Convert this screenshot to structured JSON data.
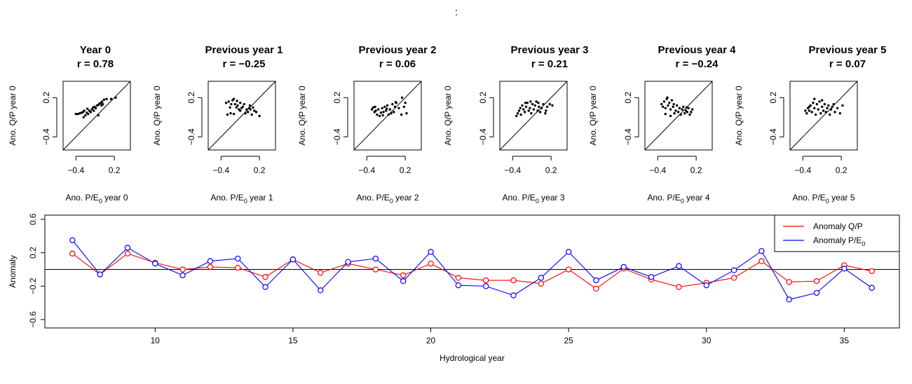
{
  "figure": {
    "top_title": ":",
    "line_color_qp": "#ff0000",
    "line_color_pe": "#0000ff"
  },
  "chart_data": [
    {
      "type": "scatter",
      "title": "Year 0",
      "r_label": "r = 0.78",
      "xlabel_main": "Ano. P/E",
      "xlabel_sub": "0",
      "xlabel_tail": " year 0",
      "ylabel": "Ano. Q/P year 0",
      "xlim": [
        -0.6,
        0.45
      ],
      "ylim": [
        -0.6,
        0.45
      ],
      "xticks": [
        -0.4,
        0.2
      ],
      "xtick_labels": [
        "−0.4",
        "0.2"
      ],
      "yticks": [
        -0.4,
        0.2
      ],
      "ytick_labels": [
        "−0.4",
        "0.2"
      ],
      "diagonal": true,
      "points": [
        [
          -0.4,
          -0.05
        ],
        [
          -0.37,
          -0.05
        ],
        [
          -0.34,
          -0.04
        ],
        [
          -0.31,
          -0.03
        ],
        [
          -0.29,
          -0.02
        ],
        [
          -0.27,
          0.0
        ],
        [
          -0.25,
          -0.07
        ],
        [
          -0.23,
          -0.03
        ],
        [
          -0.21,
          -0.05
        ],
        [
          -0.19,
          0.0
        ],
        [
          -0.17,
          -0.02
        ],
        [
          -0.15,
          0.02
        ],
        [
          -0.13,
          0.05
        ],
        [
          -0.11,
          0.06
        ],
        [
          -0.09,
          0.04
        ],
        [
          -0.07,
          0.08
        ],
        [
          -0.05,
          0.09
        ],
        [
          -0.03,
          0.11
        ],
        [
          -0.01,
          0.12
        ],
        [
          0.01,
          0.14
        ],
        [
          0.04,
          0.17
        ],
        [
          0.08,
          0.18
        ],
        [
          0.15,
          0.18
        ],
        [
          -0.28,
          -0.1
        ],
        [
          -0.22,
          0.03
        ],
        [
          -0.05,
          -0.07
        ],
        [
          -0.12,
          0.0
        ],
        [
          0.0,
          0.08
        ],
        [
          0.02,
          0.1
        ],
        [
          0.22,
          0.2
        ]
      ]
    },
    {
      "type": "scatter",
      "title": "Previous year 1",
      "r_label": "r = −0.25",
      "xlabel_main": "Ano. P/E",
      "xlabel_sub": "0",
      "xlabel_tail": " year 1",
      "ylabel": "Ano. Q/P year 0",
      "xlim": [
        -0.6,
        0.45
      ],
      "ylim": [
        -0.6,
        0.45
      ],
      "xticks": [
        -0.4,
        0.2
      ],
      "xtick_labels": [
        "−0.4",
        "0.2"
      ],
      "yticks": [
        -0.4,
        0.2
      ],
      "ytick_labels": [
        "−0.4",
        "0.2"
      ],
      "diagonal": true,
      "points": [
        [
          -0.32,
          0.12
        ],
        [
          -0.28,
          0.14
        ],
        [
          -0.26,
          0.05
        ],
        [
          -0.24,
          0.1
        ],
        [
          -0.22,
          0.16
        ],
        [
          -0.2,
          0.18
        ],
        [
          -0.18,
          0.1
        ],
        [
          -0.16,
          0.05
        ],
        [
          -0.14,
          0.08
        ],
        [
          -0.12,
          0.02
        ],
        [
          -0.1,
          0.0
        ],
        [
          -0.08,
          0.04
        ],
        [
          -0.06,
          0.06
        ],
        [
          -0.04,
          0.1
        ],
        [
          -0.02,
          -0.04
        ],
        [
          0.0,
          0.02
        ],
        [
          0.02,
          -0.02
        ],
        [
          0.04,
          0.04
        ],
        [
          0.06,
          0.02
        ],
        [
          0.08,
          -0.06
        ],
        [
          0.12,
          0.0
        ],
        [
          0.15,
          -0.02
        ],
        [
          0.2,
          -0.08
        ],
        [
          -0.3,
          -0.06
        ],
        [
          -0.25,
          -0.04
        ],
        [
          -0.2,
          -0.05
        ],
        [
          -0.1,
          0.12
        ],
        [
          0.05,
          0.08
        ],
        [
          -0.15,
          0.15
        ],
        [
          0.1,
          0.05
        ]
      ]
    },
    {
      "type": "scatter",
      "title": "Previous year 2",
      "r_label": "r = 0.06",
      "xlabel_main": "Ano. P/E",
      "xlabel_sub": "0",
      "xlabel_tail": " year 2",
      "ylabel": "Ano. Q/P year 0",
      "xlim": [
        -0.6,
        0.45
      ],
      "ylim": [
        -0.6,
        0.45
      ],
      "xticks": [
        -0.4,
        0.2
      ],
      "xtick_labels": [
        "−0.4",
        "0.2"
      ],
      "yticks": [
        -0.4,
        0.2
      ],
      "ytick_labels": [
        "−0.4",
        "0.2"
      ],
      "diagonal": true,
      "points": [
        [
          -0.32,
          0.02
        ],
        [
          -0.3,
          0.05
        ],
        [
          -0.28,
          -0.02
        ],
        [
          -0.26,
          0.0
        ],
        [
          -0.24,
          -0.06
        ],
        [
          -0.22,
          0.02
        ],
        [
          -0.2,
          -0.08
        ],
        [
          -0.18,
          -0.03
        ],
        [
          -0.16,
          0.04
        ],
        [
          -0.14,
          -0.02
        ],
        [
          -0.12,
          0.06
        ],
        [
          -0.1,
          0.0
        ],
        [
          -0.08,
          0.08
        ],
        [
          -0.06,
          -0.06
        ],
        [
          -0.04,
          0.02
        ],
        [
          -0.02,
          -0.04
        ],
        [
          0.0,
          0.1
        ],
        [
          0.02,
          -0.02
        ],
        [
          0.04,
          0.06
        ],
        [
          0.06,
          0.12
        ],
        [
          0.1,
          0.04
        ],
        [
          0.14,
          -0.06
        ],
        [
          0.18,
          0.06
        ],
        [
          0.22,
          -0.04
        ],
        [
          -0.27,
          0.06
        ],
        [
          -0.15,
          -0.07
        ],
        [
          0.05,
          0.13
        ],
        [
          -0.09,
          0.03
        ],
        [
          0.15,
          0.2
        ],
        [
          0.2,
          0.12
        ]
      ]
    },
    {
      "type": "scatter",
      "title": "Previous year 3",
      "r_label": "r = 0.21",
      "xlabel_main": "Ano. P/E",
      "xlabel_sub": "0",
      "xlabel_tail": " year 3",
      "ylabel": "Ano. Q/P year 0",
      "xlim": [
        -0.6,
        0.45
      ],
      "ylim": [
        -0.6,
        0.45
      ],
      "xticks": [
        -0.4,
        0.2
      ],
      "xtick_labels": [
        "−0.4",
        "0.2"
      ],
      "yticks": [
        -0.4,
        0.2
      ],
      "ytick_labels": [
        "−0.4",
        "0.2"
      ],
      "diagonal": true,
      "points": [
        [
          -0.34,
          -0.08
        ],
        [
          -0.32,
          -0.04
        ],
        [
          -0.3,
          0.0
        ],
        [
          -0.28,
          0.04
        ],
        [
          -0.27,
          -0.06
        ],
        [
          -0.25,
          0.08
        ],
        [
          -0.23,
          0.02
        ],
        [
          -0.21,
          -0.02
        ],
        [
          -0.19,
          0.06
        ],
        [
          -0.17,
          0.12
        ],
        [
          -0.15,
          0.0
        ],
        [
          -0.13,
          0.04
        ],
        [
          -0.11,
          -0.04
        ],
        [
          -0.09,
          0.1
        ],
        [
          -0.07,
          0.02
        ],
        [
          -0.05,
          0.08
        ],
        [
          -0.03,
          0.14
        ],
        [
          -0.01,
          0.0
        ],
        [
          0.01,
          0.06
        ],
        [
          0.03,
          -0.02
        ],
        [
          0.05,
          0.04
        ],
        [
          0.08,
          0.1
        ],
        [
          0.11,
          -0.04
        ],
        [
          0.14,
          0.06
        ],
        [
          0.18,
          0.1
        ],
        [
          0.22,
          0.08
        ],
        [
          -0.2,
          0.12
        ],
        [
          0.0,
          0.12
        ],
        [
          -0.12,
          0.14
        ],
        [
          0.12,
          0.0
        ]
      ]
    },
    {
      "type": "scatter",
      "title": "Previous year 4",
      "r_label": "r = −0.24",
      "xlabel_main": "Ano. P/E",
      "xlabel_sub": "0",
      "xlabel_tail": " year 4",
      "ylabel": "Ano. Q/P year 0",
      "xlim": [
        -0.6,
        0.45
      ],
      "ylim": [
        -0.6,
        0.45
      ],
      "xticks": [
        -0.4,
        0.2
      ],
      "xtick_labels": [
        "−0.4",
        "0.2"
      ],
      "yticks": [
        -0.4,
        0.2
      ],
      "ytick_labels": [
        "−0.4",
        "0.2"
      ],
      "diagonal": true,
      "points": [
        [
          -0.34,
          0.1
        ],
        [
          -0.32,
          0.06
        ],
        [
          -0.3,
          0.14
        ],
        [
          -0.28,
          0.04
        ],
        [
          -0.26,
          0.18
        ],
        [
          -0.24,
          0.08
        ],
        [
          -0.22,
          0.12
        ],
        [
          -0.2,
          0.02
        ],
        [
          -0.18,
          0.16
        ],
        [
          -0.16,
          0.06
        ],
        [
          -0.14,
          -0.04
        ],
        [
          -0.12,
          0.0
        ],
        [
          -0.1,
          0.08
        ],
        [
          -0.08,
          -0.02
        ],
        [
          -0.06,
          0.04
        ],
        [
          -0.04,
          -0.06
        ],
        [
          -0.02,
          0.02
        ],
        [
          0.0,
          0.06
        ],
        [
          0.02,
          -0.04
        ],
        [
          0.04,
          0.0
        ],
        [
          0.06,
          -0.02
        ],
        [
          0.08,
          0.04
        ],
        [
          0.1,
          -0.06
        ],
        [
          0.14,
          0.02
        ],
        [
          -0.25,
          0.2
        ],
        [
          -0.2,
          -0.08
        ],
        [
          -0.15,
          0.1
        ],
        [
          0.05,
          0.05
        ],
        [
          -0.28,
          -0.05
        ],
        [
          0.12,
          -0.02
        ]
      ]
    },
    {
      "type": "scatter",
      "title": "Previous year 5",
      "r_label": "r = 0.07",
      "xlabel_main": "Ano. P/E",
      "xlabel_sub": "0",
      "xlabel_tail": " year 5",
      "ylabel": "Ano. Q/P year 0",
      "xlim": [
        -0.6,
        0.45
      ],
      "ylim": [
        -0.6,
        0.45
      ],
      "xticks": [
        -0.4,
        0.2
      ],
      "xtick_labels": [
        "−0.4",
        "0.2"
      ],
      "yticks": [
        -0.4,
        0.2
      ],
      "ytick_labels": [
        "−0.4",
        "0.2"
      ],
      "diagonal": true,
      "points": [
        [
          -0.36,
          0.0
        ],
        [
          -0.34,
          -0.04
        ],
        [
          -0.32,
          0.04
        ],
        [
          -0.3,
          0.0
        ],
        [
          -0.28,
          0.08
        ],
        [
          -0.26,
          -0.02
        ],
        [
          -0.24,
          0.12
        ],
        [
          -0.22,
          0.04
        ],
        [
          -0.2,
          -0.06
        ],
        [
          -0.18,
          0.1
        ],
        [
          -0.16,
          0.02
        ],
        [
          -0.14,
          0.14
        ],
        [
          -0.12,
          -0.04
        ],
        [
          -0.1,
          0.06
        ],
        [
          -0.08,
          0.0
        ],
        [
          -0.06,
          0.1
        ],
        [
          -0.04,
          -0.02
        ],
        [
          -0.02,
          0.04
        ],
        [
          0.0,
          0.08
        ],
        [
          0.02,
          -0.06
        ],
        [
          0.04,
          0.02
        ],
        [
          0.06,
          0.06
        ],
        [
          0.1,
          -0.02
        ],
        [
          0.14,
          0.04
        ],
        [
          0.18,
          -0.04
        ],
        [
          0.22,
          0.08
        ],
        [
          -0.22,
          0.18
        ],
        [
          -0.1,
          0.16
        ],
        [
          0.08,
          0.1
        ],
        [
          -0.3,
          0.06
        ]
      ]
    },
    {
      "type": "line",
      "xlabel": "Hydrological year",
      "ylabel": "Anomaly",
      "xlim": [
        6,
        37
      ],
      "ylim": [
        -0.7,
        0.65
      ],
      "xticks": [
        10,
        15,
        20,
        25,
        30,
        35
      ],
      "yticks": [
        -0.6,
        -0.2,
        0.2,
        0.6
      ],
      "ytick_labels": [
        "−0.6",
        "−0.2",
        "0.2",
        "0.6"
      ],
      "hline": 0,
      "x": [
        7,
        8,
        9,
        10,
        11,
        12,
        13,
        14,
        15,
        16,
        17,
        18,
        19,
        20,
        21,
        22,
        23,
        24,
        25,
        26,
        27,
        28,
        29,
        30,
        31,
        32,
        33,
        34,
        35,
        36
      ],
      "series": [
        {
          "name": "Anomaly Q/P",
          "color": "#ff0000",
          "values": [
            0.19,
            -0.06,
            0.19,
            0.08,
            0.0,
            0.03,
            0.02,
            -0.09,
            0.12,
            -0.04,
            0.07,
            0.0,
            -0.07,
            0.07,
            -0.1,
            -0.13,
            -0.13,
            -0.17,
            0.0,
            -0.23,
            0.01,
            -0.12,
            -0.21,
            -0.16,
            -0.1,
            0.1,
            -0.15,
            -0.14,
            0.05,
            -0.02
          ]
        },
        {
          "name": "Anomaly P/E",
          "name_sub": "0",
          "color": "#0000ff",
          "values": [
            0.35,
            -0.06,
            0.26,
            0.07,
            -0.07,
            0.1,
            0.13,
            -0.21,
            0.12,
            -0.25,
            0.09,
            0.13,
            -0.14,
            0.21,
            -0.19,
            -0.2,
            -0.31,
            -0.1,
            0.21,
            -0.13,
            0.03,
            -0.09,
            0.04,
            -0.19,
            -0.01,
            0.22,
            -0.36,
            -0.28,
            0.01,
            -0.22
          ]
        }
      ],
      "legend": "top-right"
    }
  ]
}
